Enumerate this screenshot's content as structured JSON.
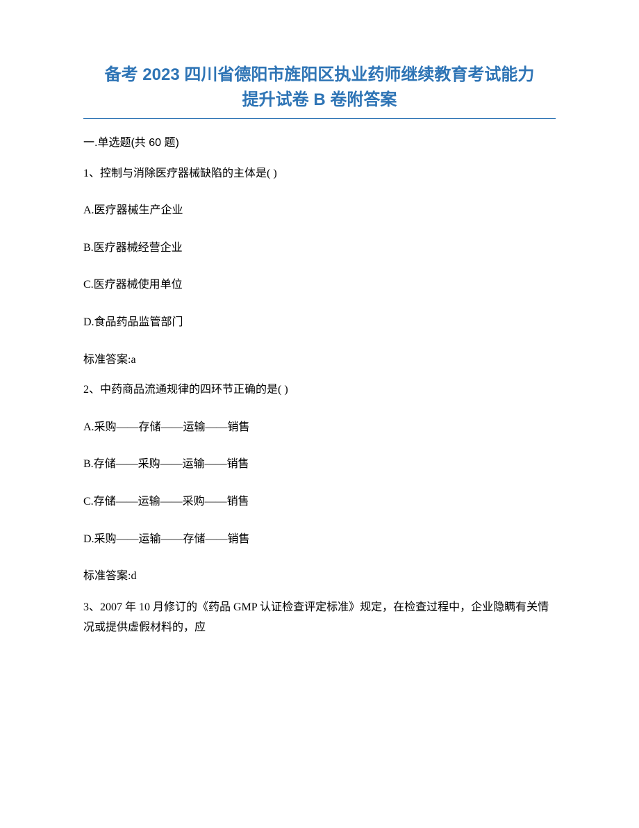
{
  "title": {
    "line1": "备考 2023 四川省德阳市旌阳区执业药师继续教育考试能力",
    "line2": "提升试卷 B 卷附答案"
  },
  "section_label": "一.单选题(共 60 题)",
  "questions": [
    {
      "stem": "1、控制与消除医疗器械缺陷的主体是( )",
      "options": [
        "A.医疗器械生产企业",
        "B.医疗器械经营企业",
        "C.医疗器械使用单位",
        "D.食品药品监管部门"
      ],
      "answer": "标准答案:a"
    },
    {
      "stem": "2、中药商品流通规律的四环节正确的是( )",
      "options": [
        "A.采购——存储——运输——销售",
        "B.存储——采购——运输——销售",
        "C.存储——运输——采购——销售",
        "D.采购——运输——存储——销售"
      ],
      "answer": "标准答案:d"
    },
    {
      "stem": "3、2007 年 10 月修订的《药品 GMP 认证检查评定标准》规定，在检查过程中，企业隐瞒有关情况或提供虚假材料的，应"
    }
  ],
  "colors": {
    "title_color": "#2e74b5",
    "rule_color": "#2e74b5",
    "text_color": "#000000",
    "background": "#ffffff"
  },
  "typography": {
    "title_fontsize": 24,
    "body_fontsize": 16,
    "title_font": "SimHei",
    "body_font": "SimSun"
  }
}
